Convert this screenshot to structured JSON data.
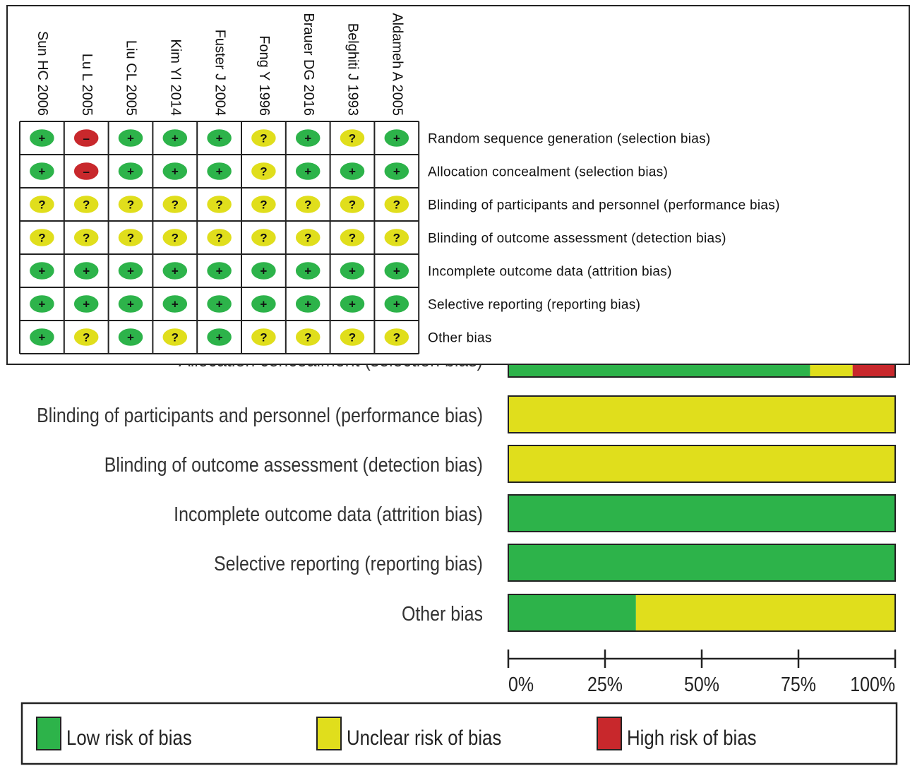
{
  "chart_data": [
    {
      "type": "table",
      "kind": "risk-of-bias-summary",
      "studies": [
        "Sun HC 2006",
        "Lu L 2005",
        "Liu CL 2005",
        "Kim YI 2014",
        "Fuster J 2004",
        "Fong Y 1996",
        "Brauer DG 2016",
        "Belghiti J 1993",
        "Aldameh A 2005"
      ],
      "domains": [
        "Random sequence generation (selection bias)",
        "Allocation concealment (selection bias)",
        "Blinding of participants and personnel (performance bias)",
        "Blinding of outcome assessment (detection bias)",
        "Incomplete outcome data (attrition bias)",
        "Selective reporting (reporting bias)",
        "Other bias"
      ],
      "judgements": [
        [
          "+",
          "-",
          "+",
          "+",
          "+",
          "?",
          "+",
          "?",
          "+"
        ],
        [
          "+",
          "-",
          "+",
          "+",
          "+",
          "?",
          "+",
          "+",
          "+"
        ],
        [
          "?",
          "?",
          "?",
          "?",
          "?",
          "?",
          "?",
          "?",
          "?"
        ],
        [
          "?",
          "?",
          "?",
          "?",
          "?",
          "?",
          "?",
          "?",
          "?"
        ],
        [
          "+",
          "+",
          "+",
          "+",
          "+",
          "+",
          "+",
          "+",
          "+"
        ],
        [
          "+",
          "+",
          "+",
          "+",
          "+",
          "+",
          "+",
          "+",
          "+"
        ],
        [
          "+",
          "?",
          "+",
          "?",
          "+",
          "?",
          "?",
          "?",
          "?"
        ]
      ],
      "symbols": {
        "+": "+",
        "?": "?",
        "-": "–"
      },
      "colors": {
        "+": "#2db34a",
        "?": "#e0de1c",
        "-": "#c8282c"
      }
    },
    {
      "type": "bar",
      "orientation": "horizontal",
      "stacked": true,
      "kind": "risk-of-bias-graph",
      "categories": [
        "Allocation concealment (selection bias)",
        "Blinding of participants and personnel (performance bias)",
        "Blinding of outcome assessment (detection bias)",
        "Incomplete outcome data (attrition bias)",
        "Selective reporting (reporting bias)",
        "Other bias"
      ],
      "series": [
        {
          "name": "Low risk of bias",
          "color": "#2db34a",
          "values": [
            78,
            0,
            0,
            100,
            100,
            33
          ]
        },
        {
          "name": "Unclear risk of bias",
          "color": "#e0de1c",
          "values": [
            11,
            100,
            100,
            0,
            0,
            67
          ]
        },
        {
          "name": "High risk of bias",
          "color": "#c8282c",
          "values": [
            11,
            0,
            0,
            0,
            0,
            0
          ]
        }
      ],
      "xlim": [
        0,
        100
      ],
      "xticks": [
        "0%",
        "25%",
        "50%",
        "75%",
        "100%"
      ],
      "legend_position": "bottom"
    }
  ]
}
